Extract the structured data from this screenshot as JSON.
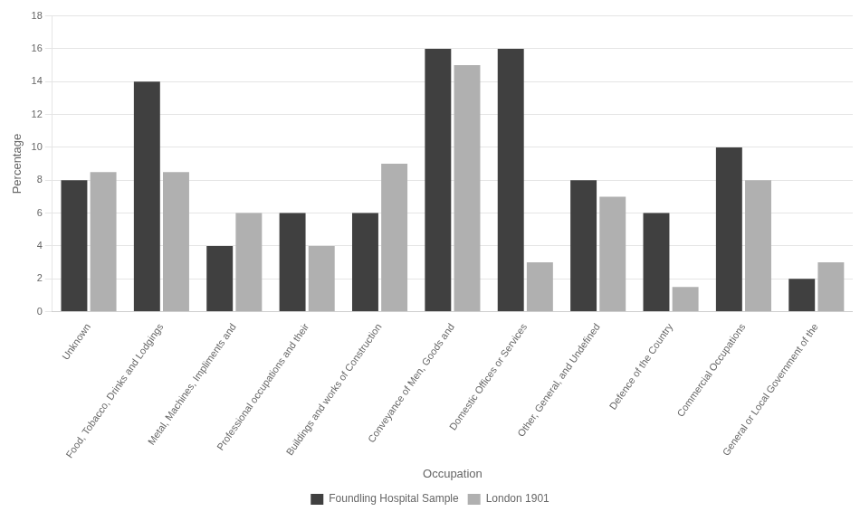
{
  "chart_data": {
    "type": "bar",
    "categories": [
      "Unknown",
      "Food, Tobacco, Drinks and Lodgings",
      "Metal, Machines, Impliments and",
      "Professional occupations and their",
      "Buildings and works of Construction",
      "Conveyance of Men, Goods and",
      "Domestic Offices or Services",
      "Other, General, and Undefined",
      "Defence of the Country",
      "Commercial Occupations",
      "General or Local Government of the"
    ],
    "series": [
      {
        "name": "Foundling Hospital Sample",
        "color": "#404040",
        "values": [
          8,
          14,
          4,
          6,
          6,
          16,
          16,
          8,
          6,
          10,
          2
        ]
      },
      {
        "name": "London 1901",
        "color": "#b0b0b0",
        "values": [
          8.5,
          8.5,
          6,
          4,
          9,
          15,
          3,
          7,
          1.5,
          8,
          3
        ]
      }
    ],
    "xlabel": "Occupation",
    "ylabel": "Percentage",
    "ylim": [
      0,
      18
    ],
    "yticks": [
      0,
      2,
      4,
      6,
      8,
      10,
      12,
      14,
      16,
      18
    ],
    "grid": true,
    "legend": "bottom"
  }
}
